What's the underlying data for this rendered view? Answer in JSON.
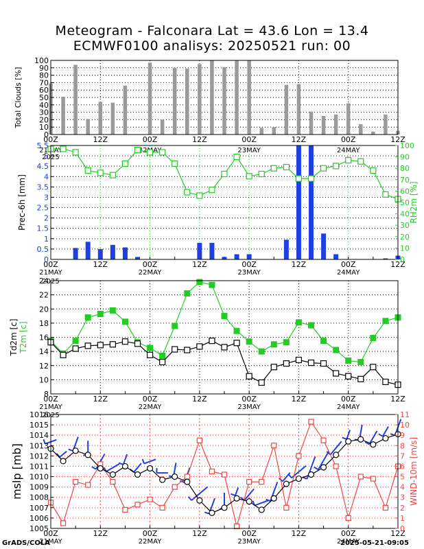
{
  "title": {
    "line1": "Meteogram - Falconara Lat = 43.6 Lon = 13.4",
    "line2": "ECMWF0100 analisys: 20250521 run: 00"
  },
  "footer": {
    "left": "GrADS/COLA",
    "right": "2025-05-21-09:05"
  },
  "colors": {
    "green": "#22cc22",
    "blue": "#1f3fe0",
    "gray": "#9a9a9a",
    "red": "#ee4444",
    "black": "#000000"
  },
  "time_axis": {
    "hour_labels": [
      "00Z",
      "12Z",
      "00Z",
      "12Z",
      "00Z",
      "12Z",
      "00Z",
      "12Z"
    ],
    "date_labels": [
      "21MAY",
      "22MAY",
      "23MAY",
      "24MAY"
    ],
    "year_label": "2025",
    "step_hours": 6,
    "span_hours": 84
  },
  "chart_data": [
    {
      "type": "bar",
      "id": "clouds",
      "ylabel": "Total Clouds [%]",
      "ylim": [
        0,
        100
      ],
      "yticks": [
        0,
        10,
        20,
        30,
        40,
        50,
        60,
        70,
        80,
        90,
        100
      ],
      "x_hours": [
        0,
        3,
        6,
        9,
        12,
        15,
        18,
        21,
        24,
        27,
        30,
        33,
        36,
        39,
        42,
        45,
        48,
        51,
        54,
        57,
        60,
        63,
        66,
        69,
        72,
        75,
        78,
        81,
        84
      ],
      "values": [
        69,
        51,
        94,
        21,
        44,
        43,
        66,
        0,
        97,
        20,
        90,
        89,
        95,
        100,
        91,
        100,
        100,
        9,
        10,
        67,
        68,
        31,
        25,
        27,
        42,
        14,
        4,
        27,
        5
      ],
      "grid": true
    },
    {
      "type": "bar",
      "id": "precip",
      "ylabel": "Prec-6h [mm]",
      "ylim": [
        0,
        5.5
      ],
      "yticks": [
        0,
        0.5,
        1,
        1.5,
        2,
        2.5,
        3,
        3.5,
        4,
        4.5,
        5,
        5.5
      ],
      "x_hours": [
        3,
        6,
        9,
        12,
        15,
        18,
        21,
        24,
        27,
        30,
        33,
        36,
        39,
        42,
        45,
        48,
        51,
        54,
        57,
        60,
        63,
        66,
        69,
        72,
        75,
        78,
        81,
        84
      ],
      "values": [
        0,
        0.55,
        0.85,
        0.5,
        0.7,
        0.58,
        0.12,
        0,
        0,
        0,
        0,
        0.8,
        0.8,
        0.12,
        0.25,
        0.25,
        0,
        0,
        0.95,
        5.9,
        5.9,
        1.25,
        0.25,
        0,
        0,
        0,
        0.05,
        0.18
      ],
      "grid": true,
      "secondary": {
        "type": "line",
        "ylabel": "RH2m [%]",
        "ylim": [
          0,
          100
        ],
        "yticks": [
          0,
          10,
          20,
          30,
          40,
          50,
          60,
          70,
          80,
          90,
          100
        ],
        "x_hours": [
          0,
          3,
          6,
          9,
          12,
          15,
          18,
          21,
          24,
          27,
          30,
          33,
          36,
          39,
          42,
          45,
          48,
          51,
          54,
          57,
          60,
          63,
          66,
          69,
          72,
          75,
          78,
          81,
          84
        ],
        "values": [
          97,
          97,
          94,
          78,
          76,
          74,
          84,
          96,
          94,
          94,
          84,
          59,
          56,
          61,
          75,
          90,
          73,
          75,
          80,
          81,
          71,
          71,
          80,
          82,
          87,
          86,
          78,
          57,
          53
        ]
      }
    },
    {
      "type": "line",
      "id": "temperature",
      "ylabel_black": "Td2m [c]",
      "ylabel_green": "T2m [c]",
      "ylim": [
        8,
        24
      ],
      "yticks": [
        8,
        10,
        12,
        14,
        16,
        18,
        20,
        22,
        24
      ],
      "x_hours": [
        0,
        3,
        6,
        9,
        12,
        15,
        18,
        21,
        24,
        27,
        30,
        33,
        36,
        39,
        42,
        45,
        48,
        51,
        54,
        57,
        60,
        63,
        66,
        69,
        72,
        75,
        78,
        81,
        84
      ],
      "series": [
        {
          "values": [
            15.5,
            13.7,
            15.5,
            18.8,
            19.3,
            19.8,
            18.2,
            15.3,
            14.5,
            13.4,
            17.6,
            22.2,
            23.8,
            23.4,
            19.0,
            16.9,
            15.4,
            14.0,
            15.0,
            15.3,
            18.1,
            17.7,
            15.5,
            14.2,
            12.7,
            12.5,
            15.9,
            18.3,
            18.8
          ]
        },
        {
          "values": [
            15.3,
            13.5,
            14.4,
            14.8,
            14.9,
            15.0,
            15.4,
            15.1,
            13.5,
            12.5,
            14.3,
            14.2,
            14.7,
            15.5,
            14.6,
            15.2,
            10.5,
            9.6,
            11.8,
            12.3,
            12.8,
            12.4,
            12.3,
            10.9,
            10.5,
            10.1,
            11.8,
            9.7,
            9.3
          ]
        }
      ],
      "grid": true
    },
    {
      "type": "line",
      "id": "pressure_wind",
      "ylabel": "mslp [mb]",
      "ylim": [
        1005,
        1016
      ],
      "yticks": [
        1005,
        1006,
        1007,
        1008,
        1009,
        1010,
        1011,
        1012,
        1013,
        1014,
        1015,
        1016
      ],
      "x_hours": [
        0,
        3,
        6,
        9,
        12,
        15,
        18,
        21,
        24,
        27,
        30,
        33,
        36,
        39,
        42,
        45,
        48,
        51,
        54,
        57,
        60,
        63,
        66,
        69,
        72,
        75,
        78,
        81,
        84
      ],
      "series": [
        {
          "values": [
            1012.7,
            1011.5,
            1012.5,
            1012.1,
            1010.8,
            1010.2,
            1011.0,
            1010.2,
            1010.8,
            1009.7,
            1010.0,
            1009.5,
            1007.7,
            1006.5,
            1007.0,
            1007.9,
            1007.6,
            1006.8,
            1007.9,
            1009.3,
            1009.8,
            1010.2,
            1010.9,
            1012.1,
            1013.4,
            1013.6,
            1013.1,
            1013.7,
            1014.1
          ]
        }
      ],
      "secondary": {
        "ylabel": "WIND-10m [m/s]",
        "ylim": [
          0,
          11
        ],
        "yticks": [
          0,
          1,
          2,
          3,
          4,
          5,
          6,
          7,
          8,
          9,
          10,
          11
        ],
        "x_hours": [
          0,
          3,
          6,
          9,
          12,
          15,
          18,
          21,
          24,
          27,
          30,
          33,
          36,
          39,
          42,
          45,
          48,
          51,
          54,
          57,
          60,
          63,
          66,
          69,
          72,
          75,
          78,
          81,
          84
        ],
        "values": [
          2.5,
          0.5,
          4.5,
          4.2,
          6.2,
          4.5,
          1.8,
          2.3,
          2.8,
          2.0,
          4.0,
          5.0,
          8.5,
          5.5,
          5.2,
          0.2,
          4.5,
          4.5,
          8.0,
          2.0,
          7.0,
          10.3,
          8.5,
          6.0,
          1.0,
          5.0,
          4.8,
          2.0,
          6.0
        ]
      },
      "wind_direction_deg": [
        250,
        230,
        200,
        180,
        210,
        240,
        200,
        220,
        250,
        270,
        190,
        200,
        230,
        200,
        180,
        200,
        220,
        250,
        200,
        220,
        230,
        200,
        210,
        220,
        200,
        190,
        210,
        210,
        200
      ],
      "grid": true
    }
  ]
}
